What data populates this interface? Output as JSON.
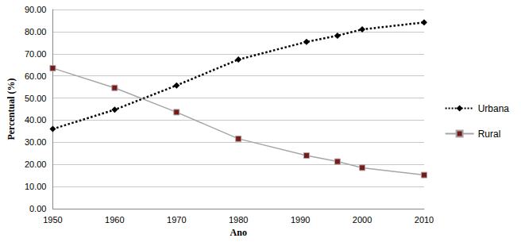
{
  "chart_data": {
    "type": "line",
    "x_label": "Ano",
    "y_label": "Percentual (%)",
    "x": [
      1950,
      1960,
      1970,
      1980,
      1991,
      1996,
      2000,
      2010
    ],
    "series": [
      {
        "name": "Urbana",
        "color": "#000000",
        "line_style": "dotted",
        "marker": "diamond",
        "values": [
          36.0,
          44.7,
          55.7,
          67.4,
          75.4,
          78.2,
          81.0,
          84.2
        ]
      },
      {
        "name": "Rural",
        "color": "#a6a6a6",
        "line_style": "solid",
        "marker": "square",
        "values": [
          63.5,
          54.6,
          43.6,
          31.6,
          24.0,
          21.3,
          18.5,
          15.2
        ]
      }
    ],
    "xlim": [
      1950,
      2010
    ],
    "xticks": [
      1950,
      1960,
      1970,
      1980,
      1990,
      2000,
      2010
    ],
    "ylim": [
      0,
      90
    ],
    "yticks": [
      {
        "value": 0,
        "label": "0.00"
      },
      {
        "value": 10,
        "label": "10.00"
      },
      {
        "value": 20,
        "label": "20.00"
      },
      {
        "value": 30,
        "label": "30.00"
      },
      {
        "value": 40,
        "label": "40.00"
      },
      {
        "value": 50,
        "label": "50.00"
      },
      {
        "value": 60,
        "label": "60.00"
      },
      {
        "value": 70,
        "label": "70.00"
      },
      {
        "value": 80,
        "label": "80.00"
      },
      {
        "value": 90,
        "label": "90.00"
      }
    ],
    "grid": true,
    "legend": "right"
  }
}
